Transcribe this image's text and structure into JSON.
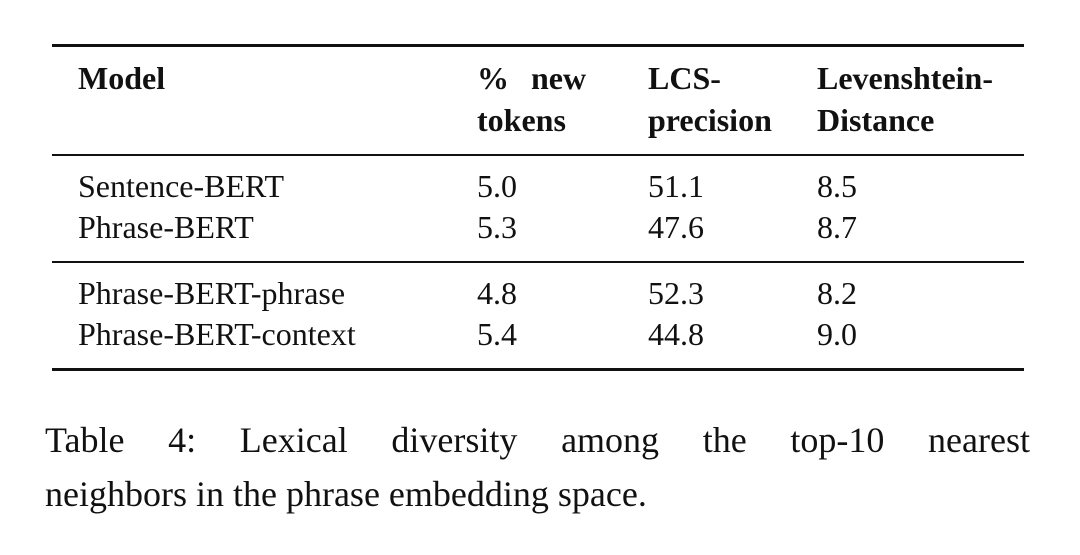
{
  "table": {
    "header": [
      [
        "Model"
      ],
      [
        "% new",
        "tokens"
      ],
      [
        "LCS-",
        "precision"
      ],
      [
        "Levenshtein-",
        "Distance"
      ]
    ],
    "groups": [
      [
        [
          "Sentence-BERT",
          "5.0",
          "51.1",
          "8.5"
        ],
        [
          "Phrase-BERT",
          "5.3",
          "47.6",
          "8.7"
        ]
      ],
      [
        [
          "Phrase-BERT-phrase",
          "4.8",
          "52.3",
          "8.2"
        ],
        [
          "Phrase-BERT-context",
          "5.4",
          "44.8",
          "9.0"
        ]
      ]
    ]
  },
  "caption": [
    "Table 4: Lexical diversity among the top-10 nearest",
    "neighbors in the phrase embedding space."
  ]
}
